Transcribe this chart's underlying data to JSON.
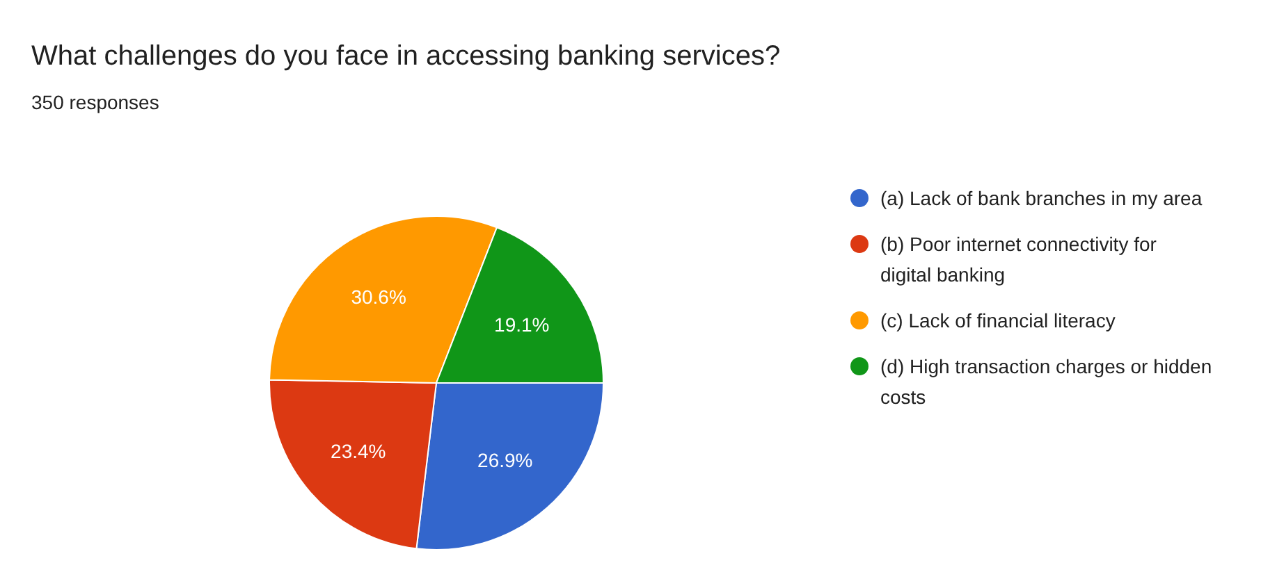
{
  "chart_data": {
    "type": "pie",
    "title": "What challenges do you face in accessing banking services?",
    "subtitle": "350 responses",
    "categories": [
      "(a) Lack of bank branches in my area",
      "(b) Poor internet connectivity for digital banking",
      "(c) Lack of financial literacy",
      "(d) High transaction charges or hidden costs"
    ],
    "values": [
      26.9,
      23.4,
      30.6,
      19.1
    ],
    "colors": [
      "#3366cc",
      "#dc3912",
      "#ff9900",
      "#109618"
    ],
    "value_labels": [
      "26.9%",
      "23.4%",
      "30.6%",
      "19.1%"
    ],
    "legend": "right"
  }
}
